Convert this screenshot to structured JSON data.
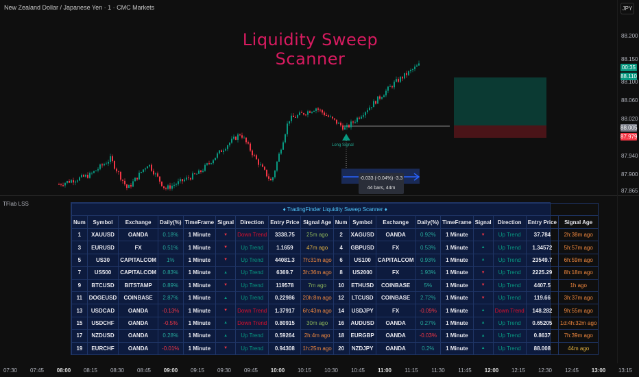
{
  "header": {
    "symbol_title": "New Zealand Dollar / Japanese Yen · 1 · CMC Markets",
    "currency": "JPY"
  },
  "chart": {
    "overlay_title": "Liquidity Sweep Scanner",
    "signal_label": "Long Signal",
    "measure_line1": "-0.033 (-0.04%) -3.3",
    "measure_line2": "44 bars, 44m",
    "price_labels": [
      "88.200",
      "88.150",
      "88.100",
      "88.060",
      "88.020",
      "87.940",
      "87.900",
      "87.865"
    ],
    "badges": [
      {
        "text": "00:35",
        "color": "#089981"
      },
      {
        "text": "88.110",
        "color": "#089981"
      },
      {
        "text": "88.005",
        "color": "#787b86"
      },
      {
        "text": "87.979",
        "color": "#f23645"
      }
    ],
    "time_labels": [
      "07:30",
      "07:45",
      "08:00",
      "08:15",
      "08:30",
      "08:45",
      "09:00",
      "09:15",
      "09:30",
      "09:45",
      "10:00",
      "10:15",
      "10:30",
      "10:45",
      "11:00",
      "11:15",
      "11:30",
      "11:45",
      "12:00",
      "12:15",
      "12:30",
      "12:45",
      "13:00",
      "13:15"
    ],
    "colors": {
      "up": "#089981",
      "down": "#f23645",
      "title": "#d81b60"
    }
  },
  "indicator": {
    "name": "TFlab LSS"
  },
  "table": {
    "title": "♦ TradingFinder Liquidity Sweep Scanner ♦",
    "headers": [
      "Num",
      "Symbol",
      "Exchange",
      "Daily(%)",
      "TimeFrame",
      "Signal",
      "Direction",
      "Entry Price",
      "Signal Age"
    ],
    "rows": [
      [
        [
          "1",
          "XAUUSD",
          "OANDA",
          "0.18%",
          "1 Minute",
          "down",
          "Down Trend",
          "3338.75",
          "25m ago"
        ],
        [
          "2",
          "XAGUSD",
          "OANDA",
          "0.92%",
          "1 Minute",
          "down",
          "Up Trend",
          "37.784",
          "2h:38m ago"
        ]
      ],
      [
        [
          "3",
          "EURUSD",
          "FX",
          "0.51%",
          "1 Minute",
          "down",
          "Up Trend",
          "1.1659",
          "47m ago"
        ],
        [
          "4",
          "GBPUSD",
          "FX",
          "0.53%",
          "1 Minute",
          "up",
          "Up Trend",
          "1.34572",
          "5h:57m ago"
        ]
      ],
      [
        [
          "5",
          "US30",
          "CAPITALCOM",
          "1%",
          "1 Minute",
          "down",
          "Up Trend",
          "44081.3",
          "7h:31m ago"
        ],
        [
          "6",
          "US100",
          "CAPITALCOM",
          "0.93%",
          "1 Minute",
          "up",
          "Up Trend",
          "23549.7",
          "6h:59m ago"
        ]
      ],
      [
        [
          "7",
          "US500",
          "CAPITALCOM",
          "0.83%",
          "1 Minute",
          "up",
          "Up Trend",
          "6369.7",
          "3h:36m ago"
        ],
        [
          "8",
          "US2000",
          "FX",
          "1.93%",
          "1 Minute",
          "down",
          "Up Trend",
          "2225.29",
          "8h:18m ago"
        ]
      ],
      [
        [
          "9",
          "BTCUSD",
          "BITSTAMP",
          "0.89%",
          "1 Minute",
          "down",
          "Up Trend",
          "119578",
          "7m ago"
        ],
        [
          "10",
          "ETHUSD",
          "COINBASE",
          "5%",
          "1 Minute",
          "down",
          "Up Trend",
          "4407.5",
          "1h ago"
        ]
      ],
      [
        [
          "11",
          "DOGEUSD",
          "COINBASE",
          "2.87%",
          "1 Minute",
          "up",
          "Up Trend",
          "0.22986",
          "20h:8m ago"
        ],
        [
          "12",
          "LTCUSD",
          "COINBASE",
          "2.72%",
          "1 Minute",
          "down",
          "Up Trend",
          "119.66",
          "3h:37m ago"
        ]
      ],
      [
        [
          "13",
          "USDCAD",
          "OANDA",
          "-0.13%",
          "1 Minute",
          "down",
          "Down Trend",
          "1.37917",
          "6h:43m ago"
        ],
        [
          "14",
          "USDJPY",
          "FX",
          "-0.09%",
          "1 Minute",
          "up",
          "Down Trend",
          "148.282",
          "9h:55m ago"
        ]
      ],
      [
        [
          "15",
          "USDCHF",
          "OANDA",
          "-0.5%",
          "1 Minute",
          "up",
          "Down Trend",
          "0.80915",
          "30m ago"
        ],
        [
          "16",
          "AUDUSD",
          "OANDA",
          "0.27%",
          "1 Minute",
          "up",
          "Up Trend",
          "0.65205",
          "1d:4h:32m ago"
        ]
      ],
      [
        [
          "17",
          "NZDUSD",
          "OANDA",
          "0.28%",
          "1 Minute",
          "up",
          "Up Trend",
          "0.59264",
          "2h:4m ago"
        ],
        [
          "18",
          "EURGBP",
          "OANDA",
          "-0.03%",
          "1 Minute",
          "up",
          "Up Trend",
          "0.8637",
          "7h:39m ago"
        ]
      ],
      [
        [
          "19",
          "EURCHF",
          "OANDA",
          "-0.01%",
          "1 Minute",
          "down",
          "Up Trend",
          "0.94308",
          "1h:25m ago"
        ],
        [
          "20",
          "NZDJPY",
          "OANDA",
          "0.2%",
          "1 Minute",
          "up",
          "Up Trend",
          "88.008",
          "44m ago"
        ]
      ]
    ]
  }
}
